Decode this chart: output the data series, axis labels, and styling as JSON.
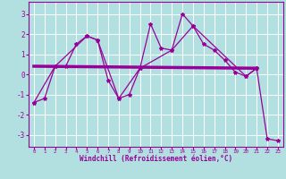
{
  "background_color": "#b2e0e0",
  "grid_color": "#ffffff",
  "line_color": "#990099",
  "xlabel": "Windchill (Refroidissement éolien,°C)",
  "xlim": [
    -0.5,
    23.5
  ],
  "ylim": [
    -3.6,
    3.6
  ],
  "yticks": [
    -3,
    -2,
    -1,
    0,
    1,
    2,
    3
  ],
  "xticks": [
    0,
    1,
    2,
    3,
    4,
    5,
    6,
    7,
    8,
    9,
    10,
    11,
    12,
    13,
    14,
    15,
    16,
    17,
    18,
    19,
    20,
    21,
    22,
    23
  ],
  "series1_x": [
    0,
    1,
    2,
    3,
    4,
    5,
    6,
    7,
    8,
    9,
    10,
    11,
    12,
    13,
    14,
    15,
    16,
    17,
    18,
    19,
    20,
    21,
    22,
    23
  ],
  "series1_y": [
    -1.4,
    -1.2,
    0.4,
    0.4,
    1.5,
    1.9,
    1.7,
    -0.3,
    -1.2,
    -1.0,
    0.3,
    2.5,
    1.3,
    1.2,
    3.0,
    2.4,
    1.5,
    1.2,
    0.7,
    0.1,
    -0.1,
    0.3,
    -3.2,
    -3.3
  ],
  "series2_x": [
    0,
    2,
    5,
    6,
    8,
    10,
    13,
    15,
    20,
    21
  ],
  "series2_y": [
    -1.4,
    0.4,
    1.9,
    1.7,
    -1.2,
    0.3,
    1.2,
    2.4,
    -0.1,
    0.3
  ],
  "series3_x": [
    0,
    21
  ],
  "series3_y": [
    0.4,
    0.3
  ],
  "xlabel_fontsize": 5.5,
  "ytick_fontsize": 5.5,
  "xtick_fontsize": 4.2
}
